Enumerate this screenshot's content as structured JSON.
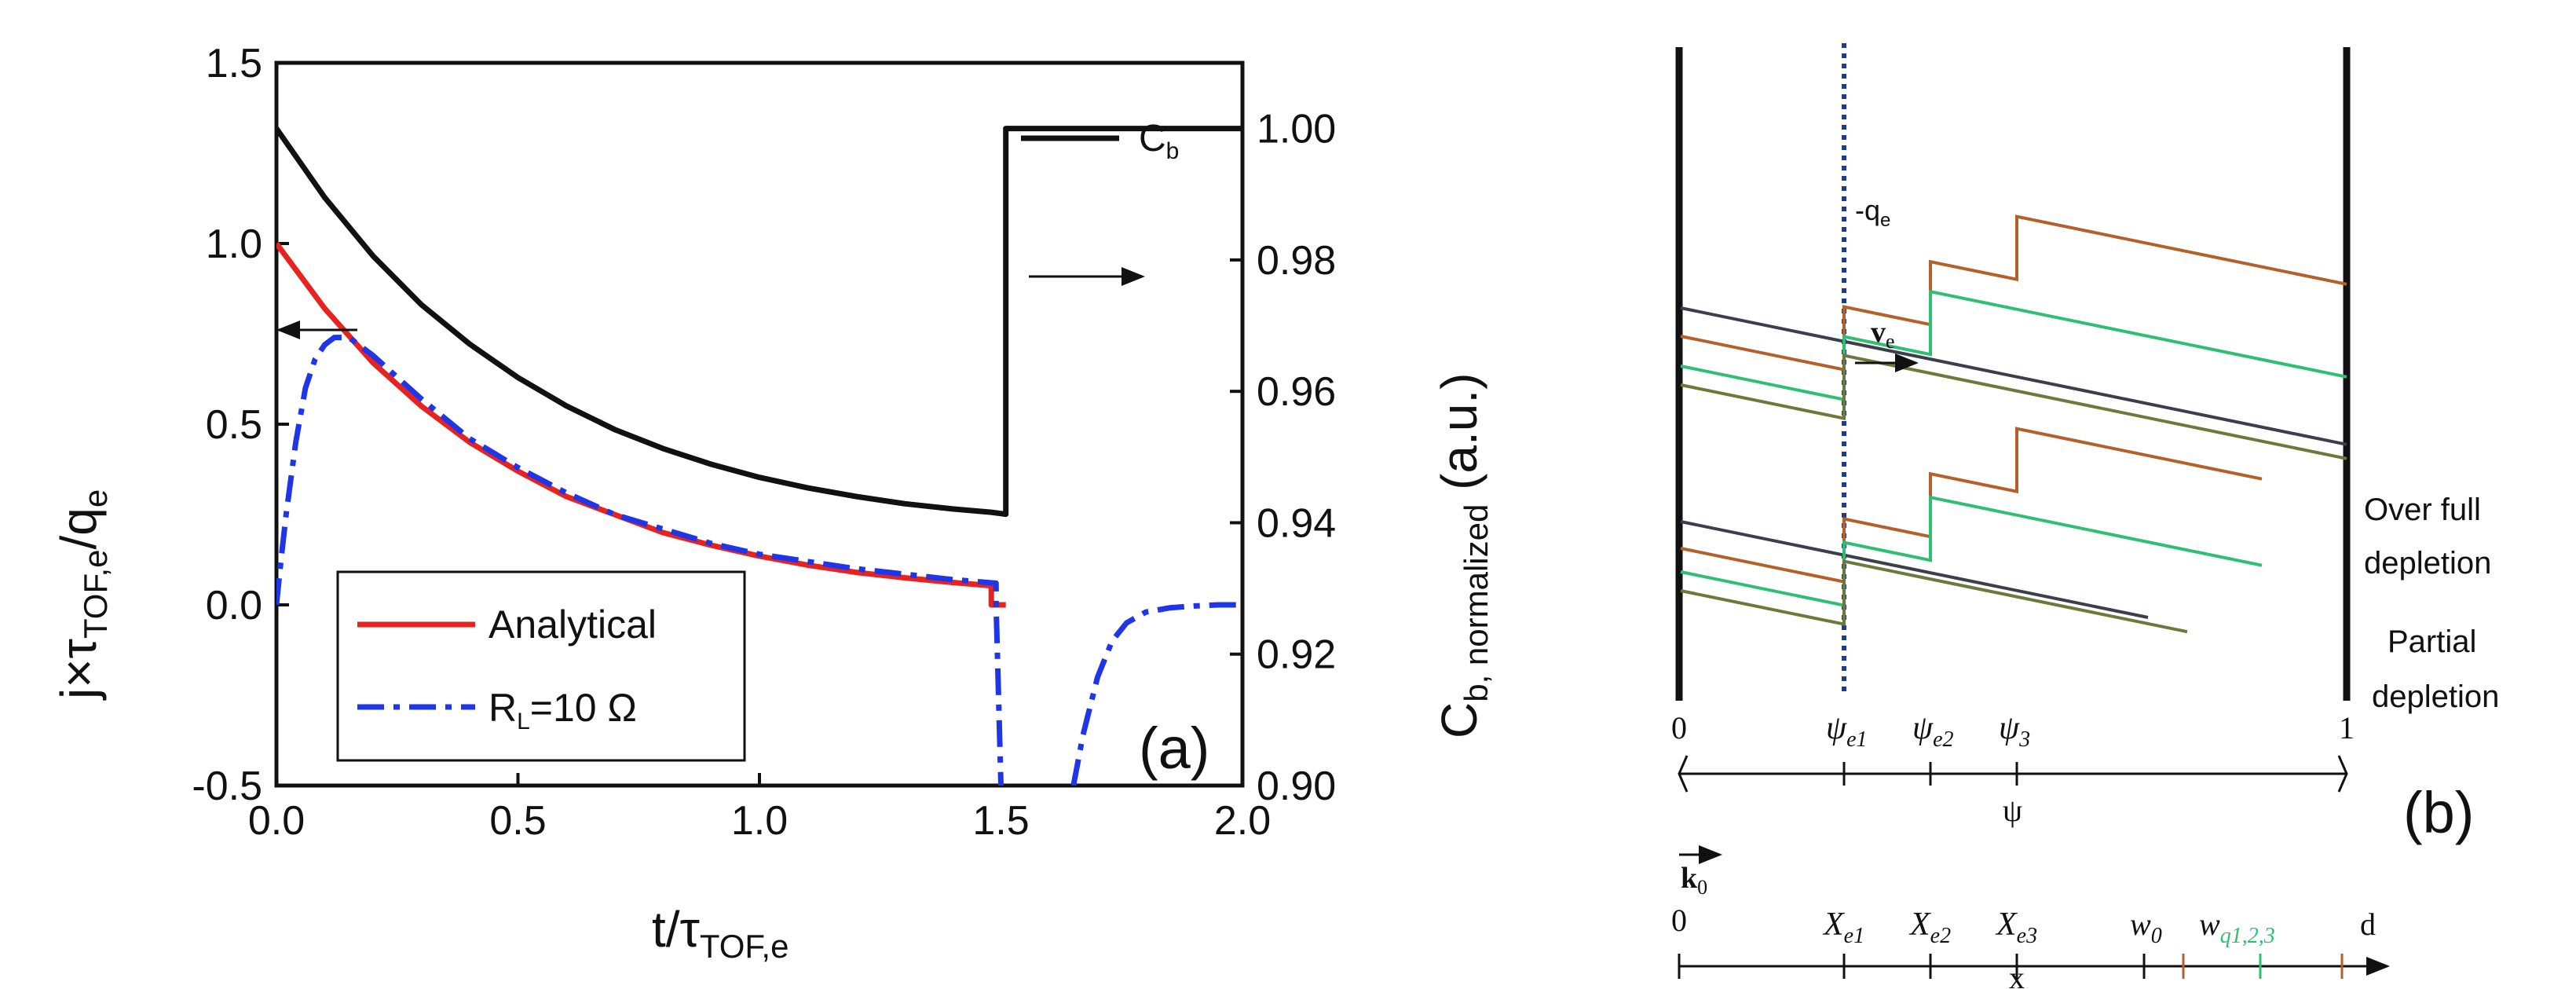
{
  "colors": {
    "black": "#111111",
    "red": "#e8231f",
    "blue": "#1f35e8",
    "green": "#2fbf72",
    "brown": "#b5602a",
    "olive": "#6b7a3a",
    "gray": "#3a3f4a",
    "dotted": "#1d3b8f"
  },
  "chart_data": [
    {
      "panel": "(a)",
      "type": "line",
      "xlabel": {
        "main": "t/τ",
        "sub": "TOF,e"
      },
      "ylabel": {
        "pre": "j×τ",
        "sub": "TOF,e",
        "post": "/q",
        "sub2": "e"
      },
      "y2label": {
        "main": "C",
        "sub": "b, normalized",
        "post": " (a.u.)"
      },
      "xlim": [
        0,
        2.0
      ],
      "ylim": [
        -0.5,
        1.5
      ],
      "y2lim": [
        0.9,
        1.01
      ],
      "xticks": [
        "0.0",
        "0.5",
        "1.0",
        "1.5",
        "2.0"
      ],
      "yticks": [
        "-0.5",
        "0.0",
        "0.5",
        "1.0",
        "1.5"
      ],
      "y2ticks": [
        "0.90",
        "0.92",
        "0.94",
        "0.96",
        "0.98",
        "1.00"
      ],
      "legend": {
        "placement": "bottom-left",
        "entries": [
          {
            "label": "Analytical",
            "series": "analytical"
          },
          {
            "label": "R",
            "sub": "L",
            "post": "=10 Ω",
            "series": "rl10"
          }
        ]
      },
      "annotations": {
        "cb_label": {
          "main": "C",
          "sub": "b"
        },
        "panel_label": "(a)"
      },
      "series": [
        {
          "name": "Analytical",
          "key": "analytical",
          "color": "#e8231f",
          "axis": "left",
          "style": "solid",
          "x": [
            0.0,
            0.1,
            0.2,
            0.3,
            0.4,
            0.5,
            0.6,
            0.7,
            0.8,
            0.9,
            1.0,
            1.1,
            1.2,
            1.3,
            1.4,
            1.48,
            1.48,
            1.51
          ],
          "y": [
            1.0,
            0.82,
            0.67,
            0.55,
            0.45,
            0.37,
            0.3,
            0.25,
            0.2,
            0.165,
            0.135,
            0.11,
            0.09,
            0.075,
            0.062,
            0.053,
            0.0,
            0.0
          ]
        },
        {
          "name": "R_L=10 Ω",
          "key": "rl10",
          "color": "#1f35e8",
          "axis": "left",
          "style": "dashdot",
          "x": [
            0.0,
            0.01,
            0.02,
            0.04,
            0.06,
            0.08,
            0.1,
            0.12,
            0.15,
            0.2,
            0.3,
            0.4,
            0.5,
            0.6,
            0.7,
            0.8,
            0.9,
            1.0,
            1.1,
            1.2,
            1.3,
            1.4,
            1.49,
            1.49,
            1.5
          ],
          "y": [
            0.0,
            0.13,
            0.25,
            0.45,
            0.6,
            0.68,
            0.72,
            0.74,
            0.74,
            0.69,
            0.57,
            0.46,
            0.38,
            0.31,
            0.25,
            0.21,
            0.17,
            0.14,
            0.12,
            0.1,
            0.085,
            0.07,
            0.06,
            0.0,
            -0.5
          ]
        },
        {
          "name": "R_L=10 Ω recovery",
          "key": "rl10b",
          "color": "#1f35e8",
          "axis": "left",
          "style": "dashdot",
          "x": [
            1.65,
            1.67,
            1.7,
            1.73,
            1.76,
            1.8,
            1.85,
            1.9,
            1.95,
            2.0
          ],
          "y": [
            -0.5,
            -0.36,
            -0.2,
            -0.1,
            -0.05,
            -0.02,
            -0.008,
            -0.003,
            0.0,
            0.0
          ]
        },
        {
          "name": "C_b",
          "key": "cb",
          "color": "#111111",
          "axis": "right",
          "style": "solid",
          "x": [
            0.0,
            0.1,
            0.2,
            0.3,
            0.4,
            0.5,
            0.6,
            0.7,
            0.8,
            0.9,
            1.0,
            1.1,
            1.2,
            1.3,
            1.4,
            1.48,
            1.51,
            1.51,
            2.0
          ],
          "y": [
            1.0,
            0.9895,
            0.9806,
            0.9732,
            0.9672,
            0.9621,
            0.9578,
            0.9542,
            0.9513,
            0.9489,
            0.9469,
            0.9453,
            0.944,
            0.9429,
            0.9421,
            0.9416,
            0.9413,
            1.0,
            1.0
          ]
        }
      ]
    },
    {
      "panel": "(b)",
      "type": "diagram",
      "labels": {
        "minus_qe": {
          "main": "-q",
          "sub": "e"
        },
        "ve": {
          "main": "v",
          "sub": "e"
        },
        "over_full_1": "Over full",
        "over_full_2": "depletion",
        "partial_1": "Partial",
        "partial_2": "depletion",
        "panel_label": "(b)",
        "k0": {
          "main": "k",
          "sub": "0"
        },
        "psi_axis": {
          "ticks": [
            {
              "main": "0"
            },
            {
              "main": "ψ",
              "sub": "e1"
            },
            {
              "main": "ψ",
              "sub": "e2"
            },
            {
              "main": "ψ",
              "sub": "3"
            },
            {
              "main": "1"
            }
          ],
          "label": "ψ"
        },
        "x_axis": {
          "ticks": [
            {
              "main": "0"
            },
            {
              "main": "X",
              "sub": "e1"
            },
            {
              "main": "X",
              "sub": "e2"
            },
            {
              "main": "X",
              "sub": "e3"
            },
            {
              "main": "w",
              "sub": "0"
            },
            {
              "main": "w",
              "sub": "q1,2,3"
            },
            {
              "main": "d"
            }
          ],
          "label": "x"
        }
      }
    }
  ]
}
